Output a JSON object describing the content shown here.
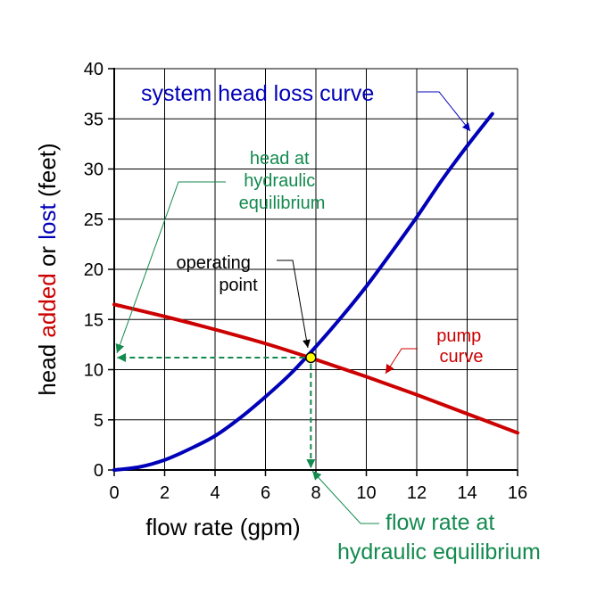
{
  "colors": {
    "system": "#0000b8",
    "pump": "#cc0000",
    "equilibrium": "#138a4f",
    "operating_point_fill": "#ffff00",
    "text": "#000000"
  },
  "chart_data": {
    "type": "line",
    "title": "",
    "xlabel": "flow rate (gpm)",
    "ylabel_parts": [
      "head ",
      "added",
      " or ",
      "lost",
      " (feet)"
    ],
    "xlim": [
      0,
      16
    ],
    "ylim": [
      0,
      40
    ],
    "x_ticks": [
      "0",
      "2",
      "4",
      "6",
      "8",
      "10",
      "12",
      "14",
      "16"
    ],
    "y_ticks": [
      "0",
      "5",
      "10",
      "15",
      "20",
      "25",
      "30",
      "35",
      "40"
    ],
    "grid": true,
    "series": [
      {
        "name": "system head loss curve",
        "color": "#0000b8",
        "x": [
          0,
          1,
          2,
          3,
          4,
          5,
          6,
          7,
          8,
          9,
          10,
          11,
          12,
          13,
          14,
          15
        ],
        "y": [
          0,
          0.3,
          1.0,
          2.1,
          3.4,
          5.2,
          7.3,
          9.6,
          12.3,
          15.2,
          18.3,
          21.7,
          25.2,
          28.9,
          32.3,
          35.5
        ]
      },
      {
        "name": "pump curve",
        "color": "#cc0000",
        "x": [
          0,
          2,
          4,
          6,
          8,
          10,
          12,
          14,
          16
        ],
        "y": [
          16.5,
          15.3,
          14.0,
          12.6,
          11.0,
          9.3,
          7.5,
          5.6,
          3.7
        ]
      }
    ],
    "operating_point": {
      "x": 7.8,
      "y": 11.2
    },
    "annotations": {
      "system_curve_label": "system head loss curve",
      "pump_curve_label": [
        "pump",
        "curve"
      ],
      "operating_point_label": [
        "operating",
        "point"
      ],
      "head_equilibrium_label": [
        "head at",
        "hydraulic",
        "equilibrium"
      ],
      "flow_equilibrium_label": [
        "flow rate at",
        "hydraulic equilibrium"
      ]
    }
  }
}
